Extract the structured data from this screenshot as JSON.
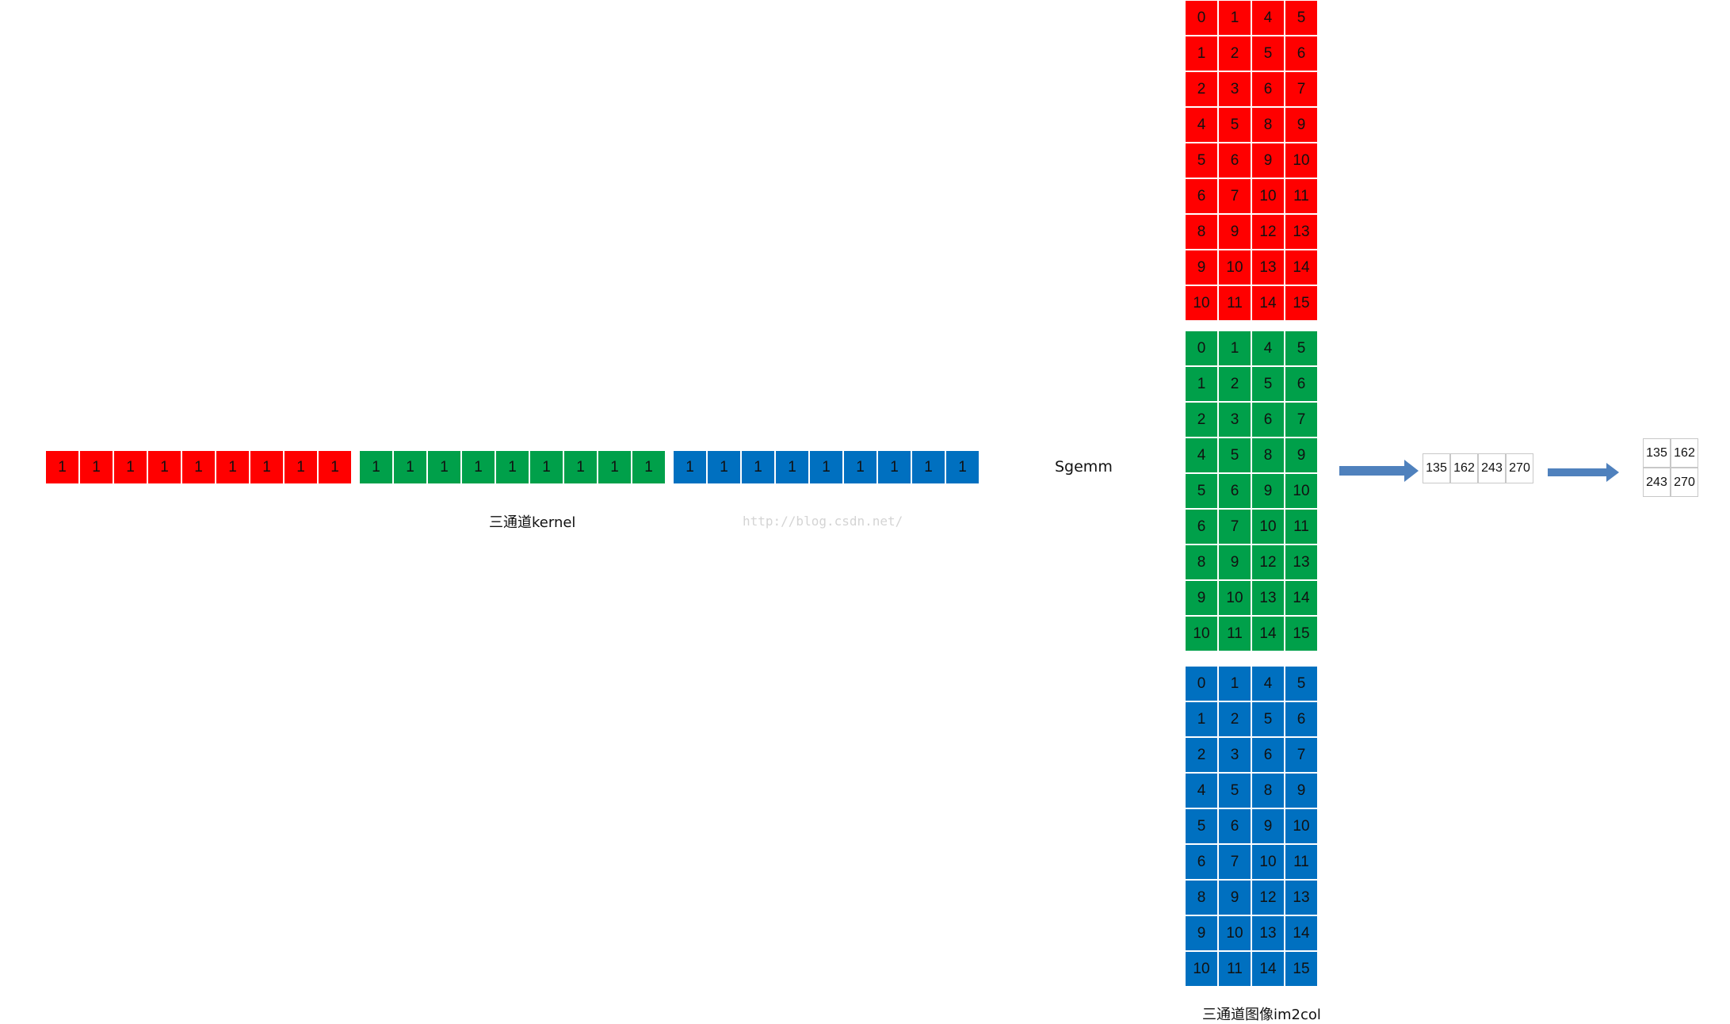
{
  "kernel": {
    "label": "三通道kernel",
    "channels": [
      {
        "name": "red",
        "color": "#ff0000",
        "values": [
          "1",
          "1",
          "1",
          "1",
          "1",
          "1",
          "1",
          "1",
          "1"
        ]
      },
      {
        "name": "green",
        "color": "#00a04a",
        "values": [
          "1",
          "1",
          "1",
          "1",
          "1",
          "1",
          "1",
          "1",
          "1"
        ]
      },
      {
        "name": "blue",
        "color": "#0070c0",
        "values": [
          "1",
          "1",
          "1",
          "1",
          "1",
          "1",
          "1",
          "1",
          "1"
        ]
      }
    ]
  },
  "operation": {
    "label": "Sgemm"
  },
  "watermark": "http://blog.csdn.net/",
  "im2col": {
    "label": "三通道图像im2col",
    "channels": [
      {
        "name": "red",
        "color": "#ff0000",
        "rows": [
          [
            "0",
            "1",
            "4",
            "5"
          ],
          [
            "1",
            "2",
            "5",
            "6"
          ],
          [
            "2",
            "3",
            "6",
            "7"
          ],
          [
            "4",
            "5",
            "8",
            "9"
          ],
          [
            "5",
            "6",
            "9",
            "10"
          ],
          [
            "6",
            "7",
            "10",
            "11"
          ],
          [
            "8",
            "9",
            "12",
            "13"
          ],
          [
            "9",
            "10",
            "13",
            "14"
          ],
          [
            "10",
            "11",
            "14",
            "15"
          ]
        ]
      },
      {
        "name": "green",
        "color": "#00a04a",
        "rows": [
          [
            "0",
            "1",
            "4",
            "5"
          ],
          [
            "1",
            "2",
            "5",
            "6"
          ],
          [
            "2",
            "3",
            "6",
            "7"
          ],
          [
            "4",
            "5",
            "8",
            "9"
          ],
          [
            "5",
            "6",
            "9",
            "10"
          ],
          [
            "6",
            "7",
            "10",
            "11"
          ],
          [
            "8",
            "9",
            "12",
            "13"
          ],
          [
            "9",
            "10",
            "13",
            "14"
          ],
          [
            "10",
            "11",
            "14",
            "15"
          ]
        ]
      },
      {
        "name": "blue",
        "color": "#0070c0",
        "rows": [
          [
            "0",
            "1",
            "4",
            "5"
          ],
          [
            "1",
            "2",
            "5",
            "6"
          ],
          [
            "2",
            "3",
            "6",
            "7"
          ],
          [
            "4",
            "5",
            "8",
            "9"
          ],
          [
            "5",
            "6",
            "9",
            "10"
          ],
          [
            "6",
            "7",
            "10",
            "11"
          ],
          [
            "8",
            "9",
            "12",
            "13"
          ],
          [
            "9",
            "10",
            "13",
            "14"
          ],
          [
            "10",
            "11",
            "14",
            "15"
          ]
        ]
      }
    ]
  },
  "result_row": [
    "135",
    "162",
    "243",
    "270"
  ],
  "result_matrix": [
    [
      "135",
      "162"
    ],
    [
      "243",
      "270"
    ]
  ],
  "arrow_color": "#4f81bd"
}
